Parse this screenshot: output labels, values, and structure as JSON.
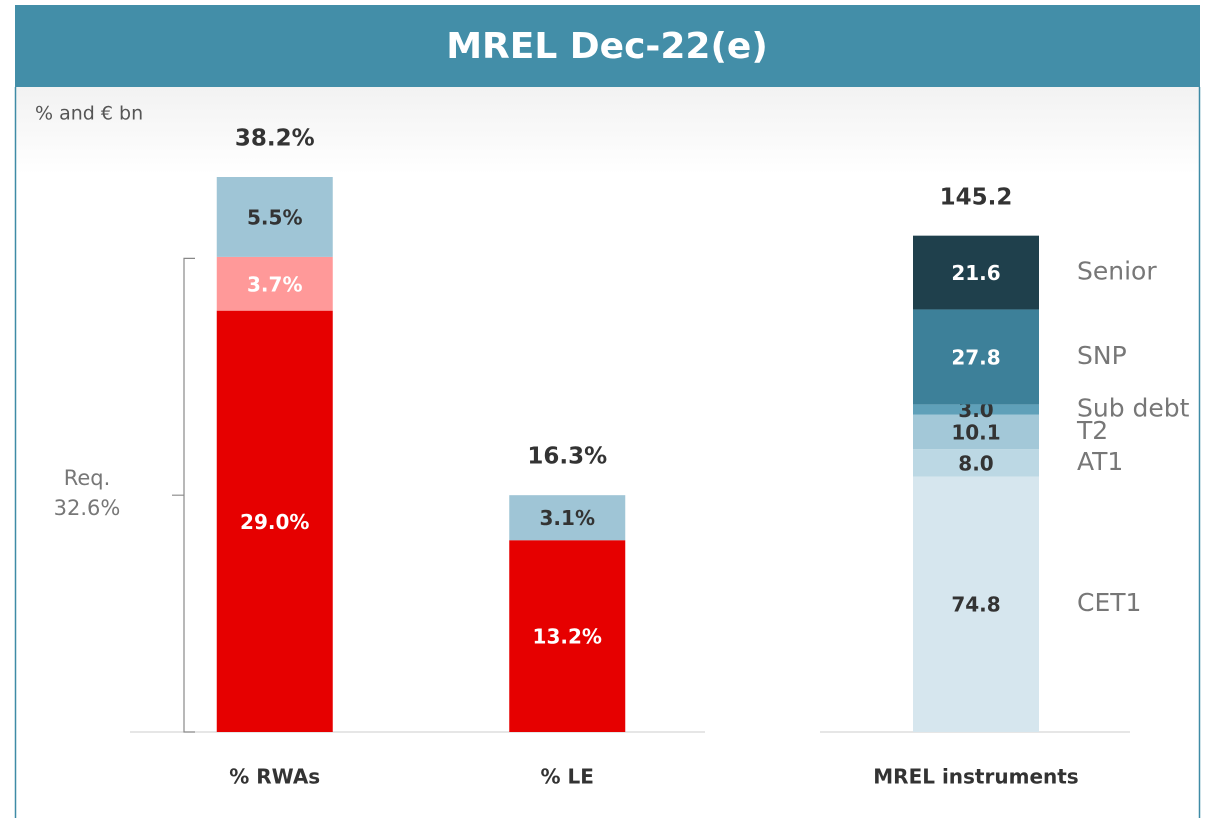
{
  "title": "MREL Dec-22(e)",
  "unit": "% and € bn",
  "chart_data": [
    {
      "type": "stacked_bar",
      "categories": [
        "% RWAs",
        "% LE"
      ],
      "series": [
        {
          "color": "#e60000",
          "label_color": "#ffffff",
          "values": [
            29.0,
            13.2
          ],
          "value_labels": [
            "29.0%",
            "13.2%"
          ]
        },
        {
          "color": "#ff9999",
          "label_color": "#ffffff",
          "values": [
            3.7,
            null
          ],
          "value_labels": [
            "3.7%",
            null
          ]
        },
        {
          "color": "#9fc5d6",
          "label_color": "#333333",
          "values": [
            5.5,
            3.1
          ],
          "value_labels": [
            "5.5%",
            "3.1%"
          ]
        }
      ],
      "totals": [
        38.2,
        16.3
      ],
      "total_labels": [
        "38.2%",
        "16.3%"
      ],
      "annotation": {
        "text": "Req.",
        "value": 32.6,
        "label": "32.6%"
      }
    },
    {
      "type": "stacked_bar",
      "categories": [
        "MREL instruments"
      ],
      "series": [
        {
          "name": "CET1",
          "color": "#d6e6ee",
          "label_color": "#333333",
          "values": [
            74.8
          ],
          "value_labels": [
            "74.8"
          ]
        },
        {
          "name": "AT1",
          "color": "#bcd8e4",
          "label_color": "#333333",
          "values": [
            8.0
          ],
          "value_labels": [
            "8.0"
          ]
        },
        {
          "name": "T2",
          "color": "#a3c8d8",
          "label_color": "#333333",
          "values": [
            10.1
          ],
          "value_labels": [
            "10.1"
          ]
        },
        {
          "name": "Sub debt",
          "color": "#5fa0b9",
          "label_color": "#333333",
          "values": [
            3.0
          ],
          "value_labels": [
            "3.0"
          ]
        },
        {
          "name": "SNP",
          "color": "#3d8099",
          "label_color": "#ffffff",
          "values": [
            27.8
          ],
          "value_labels": [
            "27.8"
          ]
        },
        {
          "name": "Senior",
          "color": "#1f404c",
          "label_color": "#ffffff",
          "values": [
            21.6
          ],
          "value_labels": [
            "21.6"
          ]
        }
      ],
      "totals": [
        145.2
      ],
      "total_labels": [
        "145.2"
      ]
    }
  ]
}
